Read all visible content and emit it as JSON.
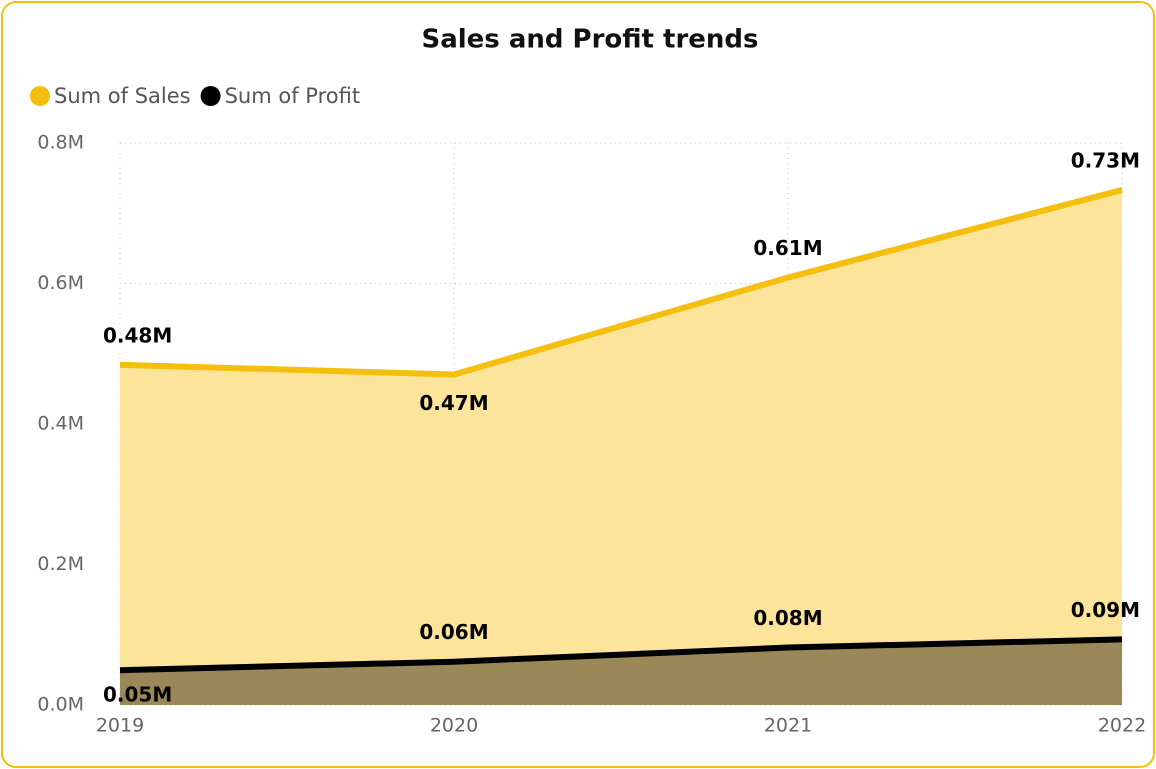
{
  "chart_data": {
    "type": "area",
    "title": "Sales and Profit trends",
    "categories": [
      "2019",
      "2020",
      "2021",
      "2022"
    ],
    "series": [
      {
        "name": "Sum of Sales",
        "color": "#F5BF0F",
        "fill": "#FCE49A",
        "values": [
          484247,
          470533,
          608474,
          733215
        ],
        "value_labels": [
          "0.48M",
          "0.47M",
          "0.61M",
          "0.73M"
        ]
      },
      {
        "name": "Sum of Profit",
        "color": "#000000",
        "fill": "#9A8859",
        "values": [
          49544,
          61619,
          81795,
          93439
        ],
        "value_labels": [
          "0.05M",
          "0.06M",
          "0.08M",
          "0.09M"
        ]
      }
    ],
    "ylim": [
      0,
      800000
    ],
    "yticks": [
      {
        "value": 0,
        "label": "0.0M"
      },
      {
        "value": 200000,
        "label": "0.2M"
      },
      {
        "value": 400000,
        "label": "0.4M"
      },
      {
        "value": 600000,
        "label": "0.6M"
      },
      {
        "value": 800000,
        "label": "0.8M"
      }
    ],
    "grid": true,
    "legend": "top-left"
  }
}
